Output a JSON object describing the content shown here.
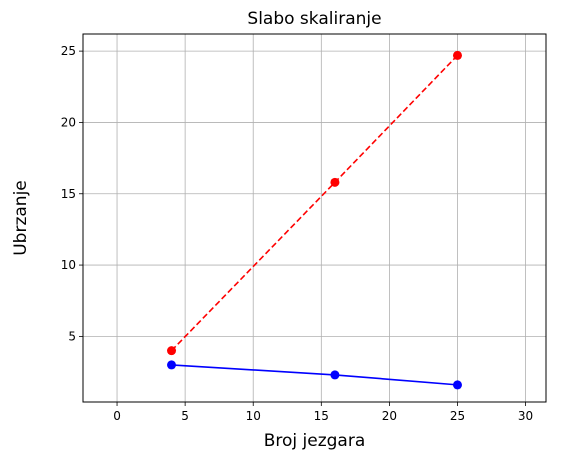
{
  "chart_data": {
    "type": "line",
    "title": "Slabo skaliranje",
    "xlabel": "Broj jezgara",
    "ylabel": "Ubrzanje",
    "xlim": [
      -2.5,
      31.5
    ],
    "ylim": [
      0.4,
      26.2
    ],
    "xticks": [
      0,
      5,
      10,
      15,
      20,
      25,
      30
    ],
    "yticks": [
      5,
      10,
      15,
      20,
      25
    ],
    "grid": true,
    "series": [
      {
        "color": "#ff0000",
        "line_style": "dashed",
        "marker": "circle",
        "x": [
          4,
          16,
          25
        ],
        "y": [
          4.0,
          15.8,
          24.7
        ]
      },
      {
        "color": "#0000ff",
        "line_style": "solid",
        "marker": "circle",
        "x": [
          4,
          16,
          25
        ],
        "y": [
          3.0,
          2.3,
          1.6
        ]
      }
    ]
  }
}
